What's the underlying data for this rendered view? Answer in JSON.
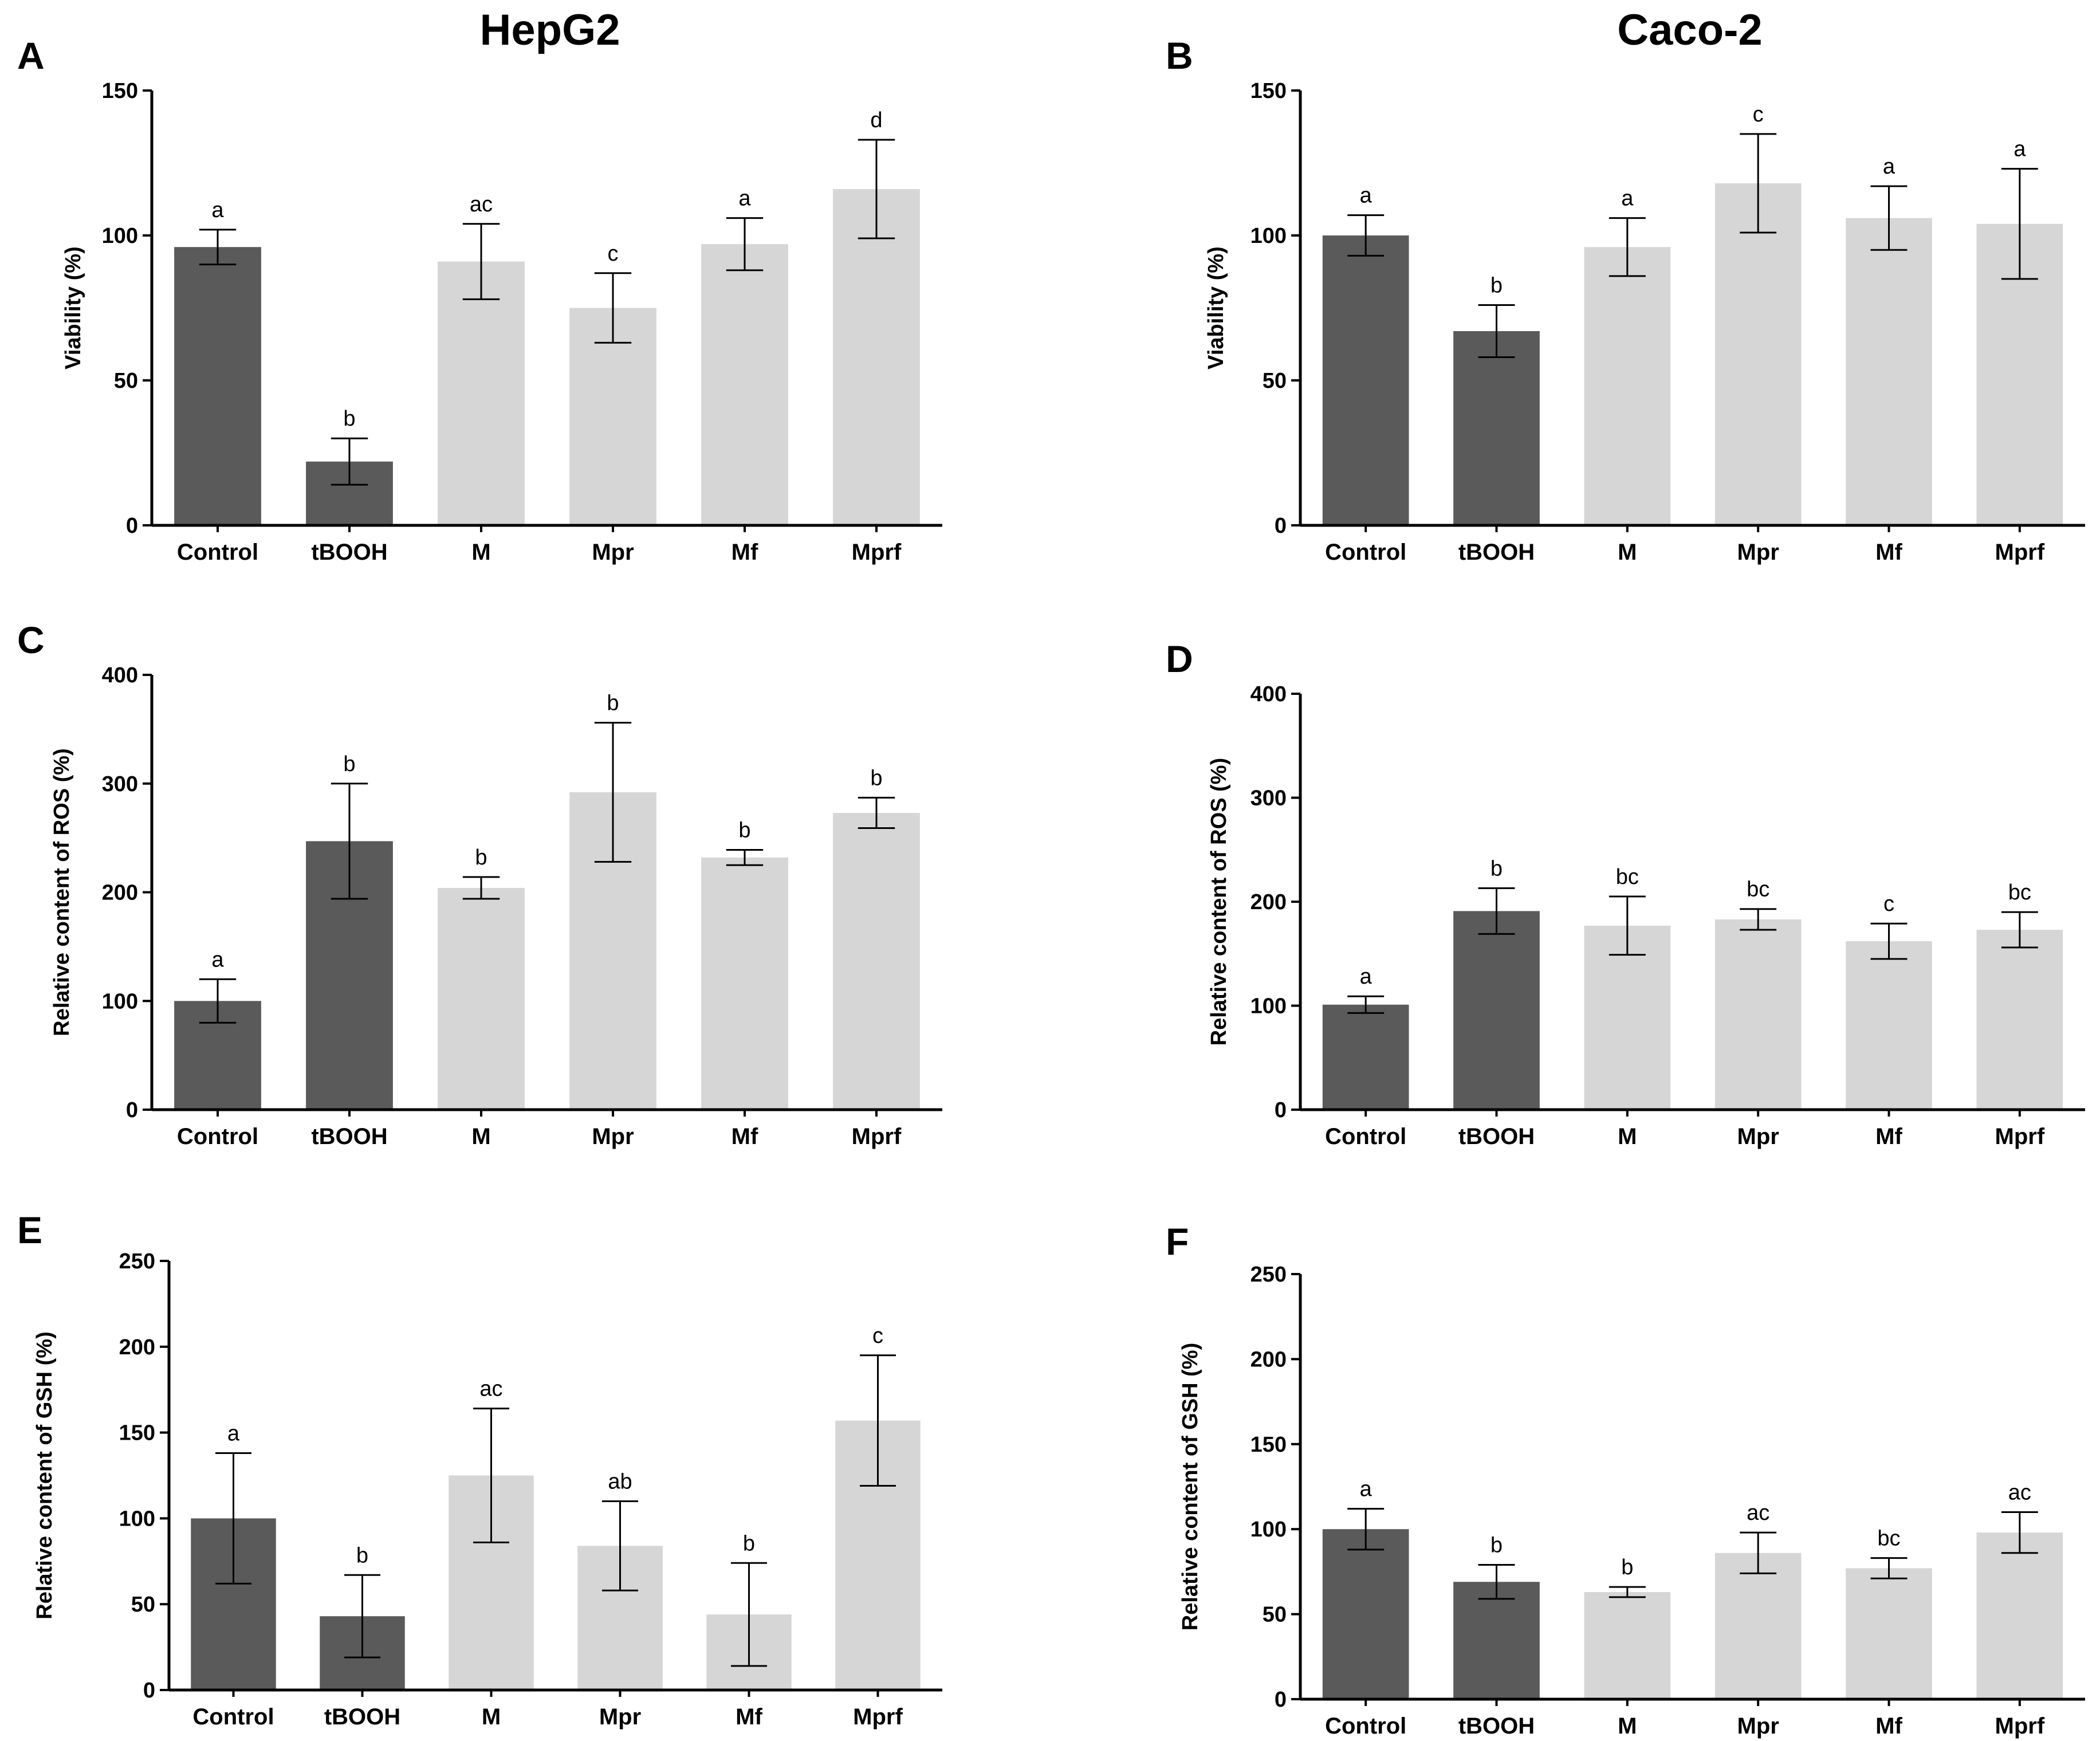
{
  "titles": {
    "left": "HepG2",
    "right": "Caco-2"
  },
  "colors": {
    "dark": "#5a5a5a",
    "light": "#d6d6d6",
    "axis": "#000000"
  },
  "chart_data": [
    {
      "panel": "A",
      "type": "bar",
      "cell_line": "HepG2",
      "categories": [
        "Control",
        "tBOOH",
        "M",
        "Mpr",
        "Mf",
        "Mprf"
      ],
      "values": [
        96,
        22,
        91,
        75,
        97,
        116
      ],
      "errors": [
        6,
        8,
        13,
        12,
        9,
        17
      ],
      "significance": [
        "a",
        "b",
        "ac",
        "c",
        "a",
        "d"
      ],
      "ylabel": "Viability (%)",
      "ylim": [
        0,
        150
      ],
      "yticks": [
        "0",
        "50",
        "100",
        "150"
      ],
      "dark_bars": 2
    },
    {
      "panel": "B",
      "type": "bar",
      "cell_line": "Caco-2",
      "categories": [
        "Control",
        "tBOOH",
        "M",
        "Mpr",
        "Mf",
        "Mprf"
      ],
      "values": [
        100,
        67,
        96,
        118,
        106,
        104
      ],
      "errors": [
        7,
        9,
        10,
        17,
        11,
        19
      ],
      "significance": [
        "a",
        "b",
        "a",
        "c",
        "a",
        "a"
      ],
      "ylabel": "Viability (%)",
      "ylim": [
        0,
        150
      ],
      "yticks": [
        "0",
        "50",
        "100",
        "150"
      ],
      "dark_bars": 2
    },
    {
      "panel": "C",
      "type": "bar",
      "cell_line": "HepG2",
      "categories": [
        "Control",
        "tBOOH",
        "M",
        "Mpr",
        "Mf",
        "Mprf"
      ],
      "values": [
        100,
        247,
        204,
        292,
        232,
        273
      ],
      "errors": [
        20,
        53,
        10,
        64,
        7,
        14
      ],
      "significance": [
        "a",
        "b",
        "b",
        "b",
        "b",
        "b"
      ],
      "ylabel": "Relative content of ROS (%)",
      "ylim": [
        0,
        400
      ],
      "yticks": [
        "0",
        "100",
        "200",
        "300",
        "400"
      ],
      "dark_bars": 2
    },
    {
      "panel": "D",
      "type": "bar",
      "cell_line": "Caco-2",
      "categories": [
        "Control",
        "tBOOH",
        "M",
        "Mpr",
        "Mf",
        "Mprf"
      ],
      "values": [
        101,
        191,
        177,
        183,
        162,
        173
      ],
      "errors": [
        8,
        22,
        28,
        10,
        17,
        17
      ],
      "significance": [
        "a",
        "b",
        "bc",
        "bc",
        "c",
        "bc"
      ],
      "ylabel": "Relative content of ROS (%)",
      "ylim": [
        0,
        400
      ],
      "yticks": [
        "0",
        "100",
        "200",
        "300",
        "400"
      ],
      "dark_bars": 2
    },
    {
      "panel": "E",
      "type": "bar",
      "cell_line": "HepG2",
      "categories": [
        "Control",
        "tBOOH",
        "M",
        "Mpr",
        "Mf",
        "Mprf"
      ],
      "values": [
        100,
        43,
        125,
        84,
        44,
        157
      ],
      "errors": [
        38,
        24,
        39,
        26,
        30,
        38
      ],
      "significance": [
        "a",
        "b",
        "ac",
        "ab",
        "b",
        "c"
      ],
      "ylabel": "Relative content of GSH (%)",
      "ylim": [
        0,
        250
      ],
      "yticks": [
        "0",
        "50",
        "100",
        "150",
        "200",
        "250"
      ],
      "dark_bars": 2
    },
    {
      "panel": "F",
      "type": "bar",
      "cell_line": "Caco-2",
      "categories": [
        "Control",
        "tBOOH",
        "M",
        "Mpr",
        "Mf",
        "Mprf"
      ],
      "values": [
        100,
        69,
        63,
        86,
        77,
        98
      ],
      "errors": [
        12,
        10,
        3,
        12,
        6,
        12
      ],
      "significance": [
        "a",
        "b",
        "b",
        "ac",
        "bc",
        "ac"
      ],
      "ylabel": "Relative content of GSH (%)",
      "ylim": [
        0,
        250
      ],
      "yticks": [
        "0",
        "50",
        "100",
        "150",
        "200",
        "250"
      ],
      "dark_bars": 2
    }
  ]
}
